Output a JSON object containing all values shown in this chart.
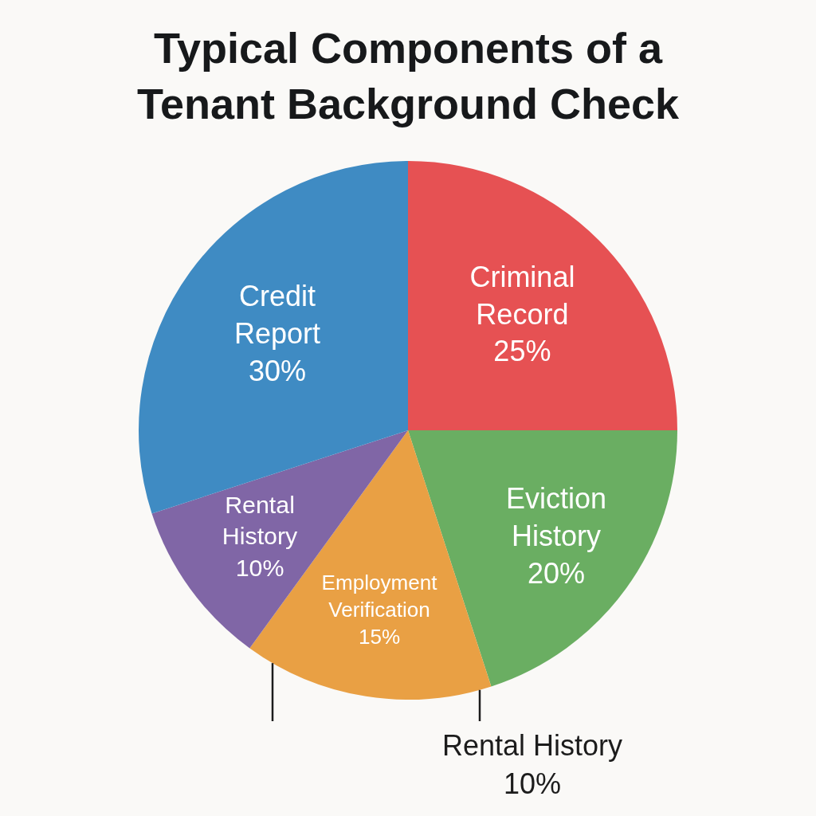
{
  "chart_data": {
    "type": "pie",
    "title": "Typical Components of a Tenant Background Check",
    "categories": [
      "Criminal Record",
      "Eviction History",
      "Employment Verification",
      "Rental History",
      "Credit Report"
    ],
    "values": [
      25,
      20,
      15,
      10,
      30
    ],
    "colors": [
      "#e65153",
      "#6aae62",
      "#e9a044",
      "#8066a6",
      "#3f8bc3"
    ],
    "value_labels": [
      "25%",
      "20%",
      "15%",
      "10%",
      "30%"
    ],
    "annotations": [
      "Rental History 10%"
    ],
    "legend": false
  }
}
